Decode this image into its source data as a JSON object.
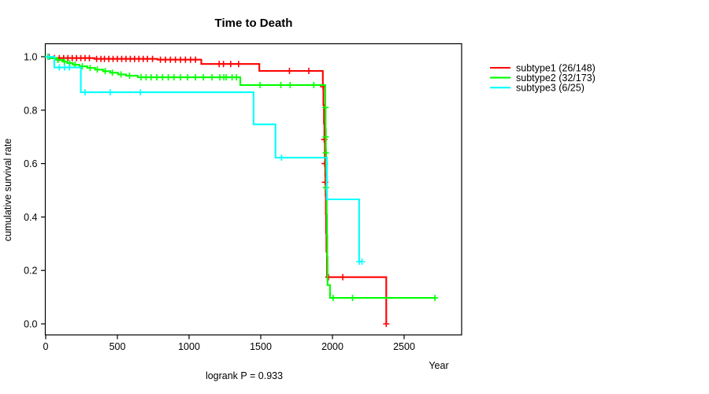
{
  "page": {
    "title": "Time to Death"
  },
  "chart_data": {
    "type": "line",
    "subtype": "kaplan-meier-step",
    "title": "Time to Death",
    "xlabel": "Year",
    "ylabel": "cumulative survival rate",
    "annotation": "logrank P = 0.933",
    "x_ticks": [
      0,
      500,
      1000,
      1500,
      2000,
      2500
    ],
    "y_ticks": [
      0.0,
      0.2,
      0.4,
      0.6,
      0.8,
      1.0
    ],
    "xlim": [
      0,
      2900
    ],
    "ylim": [
      0,
      1
    ],
    "grid": false,
    "legend_position": "right",
    "series": [
      {
        "id": "subtype1",
        "label": "subtype1 (26/148)",
        "color": "#FF0000",
        "step_points": [
          [
            0,
            1.0
          ],
          [
            45,
            0.995
          ],
          [
            340,
            0.992
          ],
          [
            780,
            0.989
          ],
          [
            1085,
            0.973
          ],
          [
            1490,
            0.947
          ],
          [
            1933,
            0.888
          ],
          [
            1937,
            0.82
          ],
          [
            1941,
            0.75
          ],
          [
            1944,
            0.69
          ],
          [
            1947,
            0.62
          ],
          [
            1950,
            0.55
          ],
          [
            1952,
            0.48
          ],
          [
            1954,
            0.41
          ],
          [
            1956,
            0.34
          ],
          [
            1958,
            0.27
          ],
          [
            1962,
            0.175
          ],
          [
            2375,
            0.0
          ]
        ],
        "censors": [
          [
            25,
            1.0
          ],
          [
            60,
            0.995
          ],
          [
            95,
            0.995
          ],
          [
            125,
            0.995
          ],
          [
            155,
            0.995
          ],
          [
            185,
            0.995
          ],
          [
            215,
            0.995
          ],
          [
            245,
            0.995
          ],
          [
            275,
            0.995
          ],
          [
            305,
            0.995
          ],
          [
            355,
            0.992
          ],
          [
            385,
            0.992
          ],
          [
            410,
            0.992
          ],
          [
            440,
            0.992
          ],
          [
            470,
            0.992
          ],
          [
            500,
            0.992
          ],
          [
            530,
            0.992
          ],
          [
            560,
            0.992
          ],
          [
            590,
            0.992
          ],
          [
            620,
            0.992
          ],
          [
            650,
            0.992
          ],
          [
            680,
            0.992
          ],
          [
            710,
            0.992
          ],
          [
            745,
            0.992
          ],
          [
            800,
            0.989
          ],
          [
            835,
            0.989
          ],
          [
            870,
            0.989
          ],
          [
            905,
            0.989
          ],
          [
            940,
            0.989
          ],
          [
            975,
            0.989
          ],
          [
            1010,
            0.989
          ],
          [
            1045,
            0.989
          ],
          [
            1210,
            0.973
          ],
          [
            1240,
            0.973
          ],
          [
            1290,
            0.973
          ],
          [
            1345,
            0.973
          ],
          [
            1700,
            0.947
          ],
          [
            1835,
            0.947
          ],
          [
            1934,
            0.888
          ],
          [
            1943,
            0.69
          ],
          [
            1946,
            0.6
          ],
          [
            1949,
            0.53
          ],
          [
            1972,
            0.175
          ],
          [
            2072,
            0.175
          ],
          [
            2375,
            0.0
          ]
        ]
      },
      {
        "id": "subtype2",
        "label": "subtype2 (32/173)",
        "color": "#00FF00",
        "step_points": [
          [
            0,
            1.0
          ],
          [
            30,
            0.994
          ],
          [
            77,
            0.988
          ],
          [
            120,
            0.982
          ],
          [
            150,
            0.976
          ],
          [
            190,
            0.97
          ],
          [
            235,
            0.964
          ],
          [
            290,
            0.958
          ],
          [
            345,
            0.952
          ],
          [
            400,
            0.946
          ],
          [
            450,
            0.94
          ],
          [
            505,
            0.934
          ],
          [
            560,
            0.929
          ],
          [
            643,
            0.923
          ],
          [
            1357,
            0.894
          ],
          [
            1950,
            0.81
          ],
          [
            1952,
            0.73
          ],
          [
            1954,
            0.65
          ],
          [
            1956,
            0.57
          ],
          [
            1958,
            0.49
          ],
          [
            1960,
            0.41
          ],
          [
            1962,
            0.33
          ],
          [
            1964,
            0.25
          ],
          [
            1966,
            0.145
          ],
          [
            1983,
            0.097
          ],
          [
            2718,
            0.097
          ]
        ],
        "censors": [
          [
            15,
            1.0
          ],
          [
            85,
            0.988
          ],
          [
            130,
            0.982
          ],
          [
            168,
            0.976
          ],
          [
            205,
            0.97
          ],
          [
            255,
            0.964
          ],
          [
            310,
            0.958
          ],
          [
            360,
            0.952
          ],
          [
            415,
            0.946
          ],
          [
            465,
            0.94
          ],
          [
            525,
            0.934
          ],
          [
            585,
            0.929
          ],
          [
            665,
            0.923
          ],
          [
            700,
            0.923
          ],
          [
            735,
            0.923
          ],
          [
            775,
            0.923
          ],
          [
            815,
            0.923
          ],
          [
            855,
            0.923
          ],
          [
            895,
            0.923
          ],
          [
            940,
            0.923
          ],
          [
            990,
            0.923
          ],
          [
            1045,
            0.923
          ],
          [
            1100,
            0.923
          ],
          [
            1160,
            0.923
          ],
          [
            1215,
            0.923
          ],
          [
            1243,
            0.923
          ],
          [
            1258,
            0.923
          ],
          [
            1300,
            0.923
          ],
          [
            1330,
            0.923
          ],
          [
            1495,
            0.894
          ],
          [
            1640,
            0.894
          ],
          [
            1705,
            0.894
          ],
          [
            1870,
            0.894
          ],
          [
            1951,
            0.81
          ],
          [
            1953,
            0.7
          ],
          [
            1954,
            0.64
          ],
          [
            1955,
            0.51
          ],
          [
            2005,
            0.097
          ],
          [
            2140,
            0.097
          ],
          [
            2715,
            0.097
          ]
        ]
      },
      {
        "id": "subtype3",
        "label": "subtype3 (6/25)",
        "color": "#00FFFF",
        "step_points": [
          [
            0,
            1.0
          ],
          [
            60,
            0.96
          ],
          [
            245,
            0.867
          ],
          [
            1450,
            0.747
          ],
          [
            1603,
            0.622
          ],
          [
            1961,
            0.466
          ],
          [
            2186,
            0.233
          ],
          [
            2210,
            0.233
          ]
        ],
        "censors": [
          [
            20,
            1.0
          ],
          [
            95,
            0.96
          ],
          [
            132,
            0.96
          ],
          [
            165,
            0.96
          ],
          [
            275,
            0.867
          ],
          [
            450,
            0.867
          ],
          [
            660,
            0.867
          ],
          [
            1645,
            0.622
          ],
          [
            2188,
            0.233
          ],
          [
            2206,
            0.233
          ]
        ]
      }
    ]
  }
}
